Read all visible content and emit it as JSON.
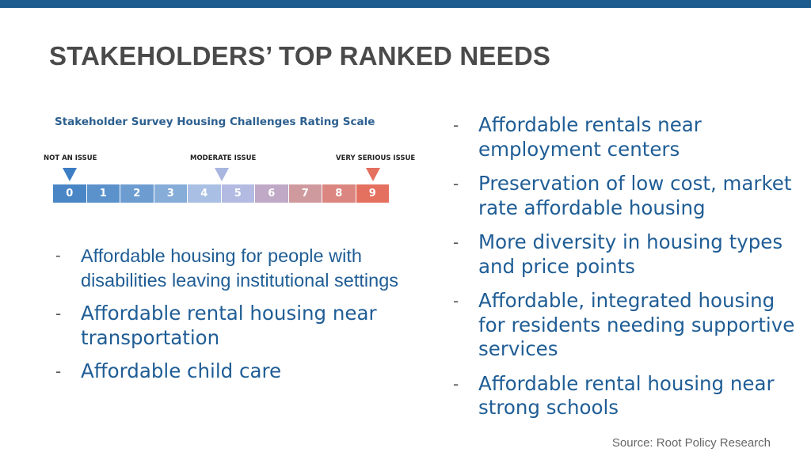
{
  "title": "STAKEHOLDERS’ TOP RANKED NEEDS",
  "scale": {
    "title": "Stakeholder Survey Housing Challenges Rating Scale",
    "markers": [
      {
        "label": "NOT AN ISSUE",
        "color": "#3d7dc4"
      },
      {
        "label": "MODERATE ISSUE",
        "color": "#a9b6e0"
      },
      {
        "label": "VERY SERIOUS ISSUE",
        "color": "#e4705f"
      }
    ],
    "cells": [
      {
        "label": "0",
        "color": "#4a86c5"
      },
      {
        "label": "1",
        "color": "#5b92cc"
      },
      {
        "label": "2",
        "color": "#6d9cd1"
      },
      {
        "label": "3",
        "color": "#86acd8"
      },
      {
        "label": "4",
        "color": "#a9bfe3"
      },
      {
        "label": "5",
        "color": "#b3bbe2"
      },
      {
        "label": "6",
        "color": "#bfa9c6"
      },
      {
        "label": "7",
        "color": "#cf9a9e"
      },
      {
        "label": "8",
        "color": "#db8680"
      },
      {
        "label": "9",
        "color": "#e4705f"
      }
    ]
  },
  "left_list": [
    "Affordable housing for people with disabilities leaving institutional settings",
    "Affordable rental housing near transportation",
    "Affordable child care"
  ],
  "right_list": [
    "Affordable rentals near employment centers",
    "Preservation of low cost, market rate affordable housing",
    "More diversity in housing types and price points",
    "Affordable, integrated housing for residents needing supportive services",
    "Affordable rental housing near strong schools"
  ],
  "bullet_dash": "-",
  "source": "Source: Root Policy Research"
}
